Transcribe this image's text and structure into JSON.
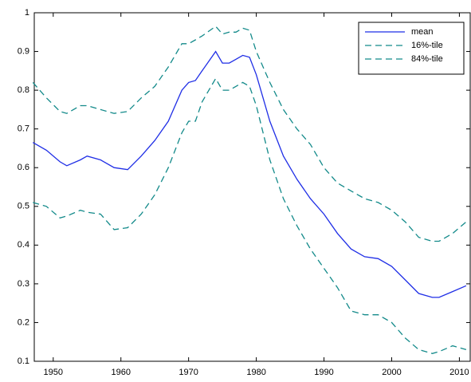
{
  "chart_data": {
    "type": "line",
    "x": [
      1947,
      1949,
      1951,
      1952,
      1954,
      1955,
      1957,
      1959,
      1961,
      1963,
      1965,
      1967,
      1969,
      1970,
      1971,
      1972,
      1974,
      1975,
      1976,
      1977,
      1978,
      1979,
      1980,
      1982,
      1984,
      1986,
      1988,
      1990,
      1992,
      1994,
      1996,
      1998,
      2000,
      2002,
      2004,
      2006,
      2007,
      2009,
      2011
    ],
    "series": [
      {
        "name": "mean",
        "color": "#1f2ee6",
        "dash": false,
        "values": [
          0.665,
          0.645,
          0.615,
          0.605,
          0.62,
          0.63,
          0.62,
          0.6,
          0.595,
          0.63,
          0.67,
          0.72,
          0.8,
          0.82,
          0.825,
          0.85,
          0.9,
          0.87,
          0.87,
          0.88,
          0.89,
          0.885,
          0.84,
          0.72,
          0.63,
          0.57,
          0.52,
          0.48,
          0.43,
          0.39,
          0.37,
          0.365,
          0.345,
          0.31,
          0.275,
          0.265,
          0.265,
          0.28,
          0.295
        ]
      },
      {
        "name": "16%-tile",
        "color": "#138a8a",
        "dash": true,
        "values": [
          0.51,
          0.5,
          0.47,
          0.475,
          0.49,
          0.485,
          0.48,
          0.44,
          0.445,
          0.48,
          0.53,
          0.6,
          0.69,
          0.72,
          0.72,
          0.77,
          0.83,
          0.8,
          0.8,
          0.81,
          0.82,
          0.81,
          0.76,
          0.62,
          0.52,
          0.45,
          0.39,
          0.34,
          0.29,
          0.23,
          0.22,
          0.22,
          0.2,
          0.16,
          0.13,
          0.12,
          0.125,
          0.14,
          0.13
        ]
      },
      {
        "name": "84%-tile",
        "color": "#138a8a",
        "dash": true,
        "values": [
          0.82,
          0.78,
          0.745,
          0.74,
          0.76,
          0.76,
          0.75,
          0.74,
          0.745,
          0.78,
          0.81,
          0.86,
          0.92,
          0.92,
          0.93,
          0.94,
          0.965,
          0.945,
          0.95,
          0.95,
          0.96,
          0.955,
          0.9,
          0.82,
          0.75,
          0.7,
          0.66,
          0.6,
          0.56,
          0.54,
          0.52,
          0.51,
          0.49,
          0.46,
          0.42,
          0.41,
          0.41,
          0.43,
          0.46
        ]
      }
    ],
    "xlim": [
      1947.2,
      2011.6
    ],
    "ylim": [
      0.1,
      1
    ],
    "xticks": [
      1950,
      1960,
      1970,
      1980,
      1990,
      2000,
      2010
    ],
    "yticks": [
      0.1,
      0.2,
      0.3,
      0.4,
      0.5,
      0.6,
      0.7,
      0.8,
      0.9,
      1
    ],
    "legend": "top-right"
  }
}
